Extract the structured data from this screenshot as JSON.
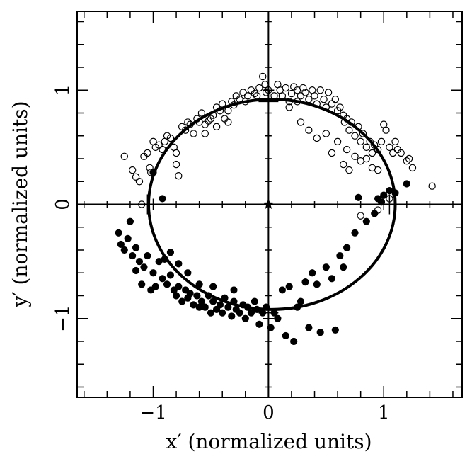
{
  "chart_data": {
    "type": "scatter",
    "xlabel": "x′ (normalized units)",
    "ylabel": "y′ (normalized units)",
    "xlim": [
      -1.66,
      1.68
    ],
    "ylim": [
      -1.69,
      1.69
    ],
    "x_ticks": [
      {
        "value": -1,
        "label": "−1"
      },
      {
        "value": 0,
        "label": "0"
      },
      {
        "value": 1,
        "label": "1"
      }
    ],
    "y_ticks": [
      {
        "value": -1,
        "label": "−1"
      },
      {
        "value": 0,
        "label": "0"
      },
      {
        "value": 1,
        "label": "1"
      }
    ],
    "minor_tick_step": 0.2,
    "grid": false,
    "zero_lines": true,
    "center_marker": {
      "x": 0,
      "y": 0,
      "shape": "star"
    },
    "error_bars": [
      {
        "x": 0,
        "y": 0.9,
        "err": 0.07
      },
      {
        "x": 0,
        "y": -0.95,
        "err": 0.05
      },
      {
        "x": -1.05,
        "y": 0,
        "err": 0.06
      },
      {
        "x": 1.05,
        "y": 0,
        "err": 0.06
      }
    ],
    "fit_ellipse": {
      "cx": 0.03,
      "cy": 0.0,
      "rx": 1.07,
      "ry": 0.92,
      "color": "#000000"
    },
    "series": [
      {
        "marker": "open-circle",
        "points": [
          [
            -1.15,
            0.24
          ],
          [
            -1.12,
            0.2
          ],
          [
            -1.08,
            0.42
          ],
          [
            -1.05,
            0.45
          ],
          [
            -1.03,
            0.32
          ],
          [
            -1.02,
            0.28
          ],
          [
            -1.0,
            0.55
          ],
          [
            -0.98,
            0.5
          ],
          [
            -0.95,
            0.52
          ],
          [
            -0.92,
            0.48
          ],
          [
            -0.9,
            0.55
          ],
          [
            -0.88,
            0.6
          ],
          [
            -0.85,
            0.58
          ],
          [
            -0.82,
            0.5
          ],
          [
            -0.8,
            0.45
          ],
          [
            -0.8,
            0.35
          ],
          [
            -0.78,
            0.25
          ],
          [
            -0.75,
            0.68
          ],
          [
            -0.72,
            0.65
          ],
          [
            -0.7,
            0.72
          ],
          [
            -0.68,
            0.7
          ],
          [
            -0.65,
            0.62
          ],
          [
            -0.62,
            0.75
          ],
          [
            -0.6,
            0.72
          ],
          [
            -0.58,
            0.8
          ],
          [
            -0.55,
            0.7
          ],
          [
            -0.52,
            0.73
          ],
          [
            -0.5,
            0.75
          ],
          [
            -0.48,
            0.78
          ],
          [
            -0.45,
            0.85
          ],
          [
            -0.42,
            0.82
          ],
          [
            -0.4,
            0.88
          ],
          [
            -0.38,
            0.75
          ],
          [
            -0.35,
            0.82
          ],
          [
            -0.32,
            0.9
          ],
          [
            -0.3,
            0.87
          ],
          [
            -0.28,
            0.95
          ],
          [
            -0.25,
            0.92
          ],
          [
            -0.22,
            0.98
          ],
          [
            -0.2,
            0.9
          ],
          [
            -0.18,
            0.95
          ],
          [
            -0.15,
            1.0
          ],
          [
            -0.12,
            0.97
          ],
          [
            -0.1,
            0.95
          ],
          [
            -0.08,
            1.02
          ],
          [
            -0.05,
            1.12
          ],
          [
            -0.03,
            1.05
          ],
          [
            -0.02,
            0.98
          ],
          [
            0.0,
            1.0
          ],
          [
            0.05,
            0.95
          ],
          [
            0.08,
            1.05
          ],
          [
            0.1,
            1.0
          ],
          [
            0.12,
            0.95
          ],
          [
            0.15,
            1.02
          ],
          [
            0.18,
            0.9
          ],
          [
            0.2,
            0.97
          ],
          [
            0.22,
            1.03
          ],
          [
            0.25,
            1.0
          ],
          [
            0.28,
            0.95
          ],
          [
            0.3,
            1.02
          ],
          [
            0.32,
            0.98
          ],
          [
            0.35,
            0.92
          ],
          [
            0.38,
            1.0
          ],
          [
            0.4,
            0.95
          ],
          [
            0.42,
            0.88
          ],
          [
            0.45,
            1.0
          ],
          [
            0.48,
            0.92
          ],
          [
            0.5,
            0.85
          ],
          [
            0.52,
            0.98
          ],
          [
            0.55,
            0.88
          ],
          [
            0.58,
            0.92
          ],
          [
            0.6,
            0.82
          ],
          [
            0.62,
            0.85
          ],
          [
            0.65,
            0.78
          ],
          [
            0.66,
            0.72
          ],
          [
            0.68,
            0.75
          ],
          [
            0.7,
            0.65
          ],
          [
            0.72,
            0.72
          ],
          [
            0.75,
            0.6
          ],
          [
            0.78,
            0.68
          ],
          [
            0.8,
            0.55
          ],
          [
            0.82,
            0.62
          ],
          [
            0.85,
            0.5
          ],
          [
            0.88,
            0.55
          ],
          [
            0.9,
            0.45
          ],
          [
            0.92,
            0.52
          ],
          [
            0.95,
            0.48
          ],
          [
            0.98,
            0.55
          ],
          [
            1.0,
            0.7
          ],
          [
            1.02,
            0.65
          ],
          [
            1.05,
            0.5
          ],
          [
            1.08,
            0.45
          ],
          [
            1.1,
            0.55
          ],
          [
            1.12,
            0.48
          ],
          [
            1.15,
            0.45
          ],
          [
            1.2,
            0.38
          ],
          [
            1.22,
            0.4
          ],
          [
            1.25,
            0.32
          ],
          [
            1.42,
            0.16
          ],
          [
            0.28,
            0.72
          ],
          [
            0.35,
            0.65
          ],
          [
            0.42,
            0.58
          ],
          [
            0.5,
            0.62
          ],
          [
            0.6,
            0.55
          ],
          [
            0.68,
            0.48
          ],
          [
            0.75,
            0.42
          ],
          [
            0.8,
            0.38
          ],
          [
            0.85,
            0.4
          ],
          [
            0.9,
            0.32
          ],
          [
            0.95,
            0.3
          ],
          [
            0.7,
            0.3
          ],
          [
            0.65,
            0.35
          ],
          [
            0.55,
            0.45
          ],
          [
            1.05,
            0.05
          ],
          [
            0.8,
            -0.1
          ],
          [
            0.95,
            -0.05
          ],
          [
            -1.1,
            0.0
          ],
          [
            -1.25,
            0.42
          ],
          [
            -1.18,
            0.3
          ],
          [
            -0.55,
            0.62
          ],
          [
            -0.45,
            0.68
          ],
          [
            -0.35,
            0.72
          ],
          [
            0.18,
            0.85
          ],
          [
            0.25,
            0.9
          ]
        ]
      },
      {
        "marker": "filled-circle",
        "points": [
          [
            -1.3,
            -0.25
          ],
          [
            -1.28,
            -0.35
          ],
          [
            -1.25,
            -0.4
          ],
          [
            -1.22,
            -0.3
          ],
          [
            -1.2,
            -0.15
          ],
          [
            -1.18,
            -0.45
          ],
          [
            -1.15,
            -0.58
          ],
          [
            -1.12,
            -0.5
          ],
          [
            -1.1,
            -0.7
          ],
          [
            -1.08,
            -0.55
          ],
          [
            -1.05,
            -0.45
          ],
          [
            -1.02,
            -0.75
          ],
          [
            -1.0,
            -0.6
          ],
          [
            -0.98,
            -0.72
          ],
          [
            -0.95,
            -0.5
          ],
          [
            -0.92,
            -0.65
          ],
          [
            -0.9,
            -0.48
          ],
          [
            -0.88,
            -0.7
          ],
          [
            -0.85,
            -0.62
          ],
          [
            -0.82,
            -0.75
          ],
          [
            -0.8,
            -0.8
          ],
          [
            -0.78,
            -0.72
          ],
          [
            -0.75,
            -0.85
          ],
          [
            -0.72,
            -0.75
          ],
          [
            -0.7,
            -0.82
          ],
          [
            -0.68,
            -0.78
          ],
          [
            -0.65,
            -0.88
          ],
          [
            -0.62,
            -0.8
          ],
          [
            -0.6,
            -0.9
          ],
          [
            -0.58,
            -0.85
          ],
          [
            -0.55,
            -0.9
          ],
          [
            -0.52,
            -0.8
          ],
          [
            -0.5,
            -0.95
          ],
          [
            -0.48,
            -0.85
          ],
          [
            -0.45,
            -0.92
          ],
          [
            -0.42,
            -0.88
          ],
          [
            -0.4,
            -0.95
          ],
          [
            -0.38,
            -0.82
          ],
          [
            -0.35,
            -0.9
          ],
          [
            -0.32,
            -0.98
          ],
          [
            -0.3,
            -0.85
          ],
          [
            -0.28,
            -0.92
          ],
          [
            -0.25,
            -0.95
          ],
          [
            -0.22,
            -0.88
          ],
          [
            -0.2,
            -1.0
          ],
          [
            -0.18,
            -0.9
          ],
          [
            -0.15,
            -0.95
          ],
          [
            -0.12,
            -0.85
          ],
          [
            -0.1,
            -0.92
          ],
          [
            -0.08,
            -1.05
          ],
          [
            -0.05,
            -0.95
          ],
          [
            -0.02,
            -0.9
          ],
          [
            0.02,
            -1.08
          ],
          [
            0.05,
            -0.95
          ],
          [
            0.08,
            -1.0
          ],
          [
            0.12,
            -0.75
          ],
          [
            0.18,
            -0.72
          ],
          [
            0.22,
            -1.2
          ],
          [
            0.25,
            -0.9
          ],
          [
            0.28,
            -0.85
          ],
          [
            0.32,
            -0.68
          ],
          [
            0.35,
            -1.08
          ],
          [
            0.38,
            -0.6
          ],
          [
            0.42,
            -0.7
          ],
          [
            0.45,
            -1.12
          ],
          [
            0.5,
            -0.55
          ],
          [
            0.55,
            -0.65
          ],
          [
            0.58,
            -1.1
          ],
          [
            0.62,
            -0.45
          ],
          [
            0.65,
            -0.55
          ],
          [
            0.68,
            -0.38
          ],
          [
            0.75,
            -0.25
          ],
          [
            0.85,
            -0.15
          ],
          [
            0.92,
            -0.08
          ],
          [
            0.95,
            0.05
          ],
          [
            0.98,
            0.02
          ],
          [
            1.0,
            0.08
          ],
          [
            1.05,
            0.12
          ],
          [
            1.1,
            0.1
          ],
          [
            1.2,
            0.18
          ],
          [
            0.78,
            0.06
          ],
          [
            -0.92,
            0.05
          ],
          [
            -1.0,
            0.28
          ],
          [
            -0.85,
            -0.42
          ],
          [
            -0.78,
            -0.52
          ],
          [
            -0.7,
            -0.6
          ],
          [
            -0.6,
            -0.7
          ],
          [
            -0.48,
            -0.72
          ],
          [
            -0.3,
            -0.75
          ],
          [
            0.15,
            -1.15
          ],
          [
            -1.15,
            -0.38
          ]
        ]
      }
    ]
  }
}
